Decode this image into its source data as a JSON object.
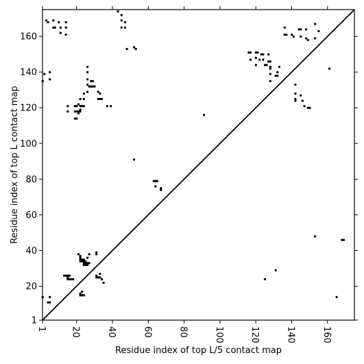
{
  "chart_data": {
    "type": "scatter",
    "xlabel": "Residue index of top L/5 contact map",
    "ylabel": "Residue index of top L contact map",
    "xlim": [
      1,
      175
    ],
    "ylim": [
      1,
      175
    ],
    "xticks": [
      1,
      20,
      40,
      60,
      80,
      100,
      120,
      140,
      160
    ],
    "yticks": [
      1,
      20,
      40,
      60,
      80,
      100,
      120,
      140,
      160
    ],
    "xtick_rotation": -90,
    "grid": false,
    "diagonal_line": true,
    "marker_color": "#000000",
    "upper_points": [
      [
        1,
        135
      ],
      [
        2,
        139
      ],
      [
        5,
        140
      ],
      [
        5,
        136
      ],
      [
        3,
        169
      ],
      [
        4,
        168
      ],
      [
        7,
        169
      ],
      [
        7,
        165
      ],
      [
        8,
        165
      ],
      [
        10,
        168
      ],
      [
        11,
        165
      ],
      [
        11,
        162
      ],
      [
        14,
        168
      ],
      [
        14,
        165
      ],
      [
        14,
        161
      ],
      [
        19,
        121
      ],
      [
        20,
        121
      ],
      [
        21,
        122
      ],
      [
        22,
        121
      ],
      [
        23,
        121
      ],
      [
        24,
        121
      ],
      [
        19,
        118
      ],
      [
        20,
        118
      ],
      [
        21,
        118
      ],
      [
        22,
        118
      ],
      [
        15,
        118
      ],
      [
        15,
        121
      ],
      [
        19,
        114
      ],
      [
        20,
        114
      ],
      [
        21,
        117
      ],
      [
        22,
        119
      ],
      [
        22,
        125
      ],
      [
        24,
        125
      ],
      [
        24,
        128
      ],
      [
        26,
        143
      ],
      [
        26,
        140
      ],
      [
        26,
        136
      ],
      [
        26,
        133
      ],
      [
        26,
        129
      ],
      [
        27,
        132
      ],
      [
        28,
        132
      ],
      [
        29,
        132
      ],
      [
        30,
        132
      ],
      [
        28,
        135
      ],
      [
        29,
        135
      ],
      [
        32,
        129
      ],
      [
        33,
        128
      ],
      [
        32,
        125
      ],
      [
        33,
        125
      ],
      [
        34,
        125
      ],
      [
        37,
        121
      ],
      [
        39,
        121
      ],
      [
        43,
        174
      ],
      [
        45,
        172
      ],
      [
        45,
        169
      ],
      [
        47,
        168
      ],
      [
        45,
        165
      ],
      [
        47,
        165
      ],
      [
        48,
        153
      ],
      [
        52,
        154
      ],
      [
        53,
        153
      ],
      [
        52,
        91
      ],
      [
        63,
        79
      ],
      [
        64,
        79
      ],
      [
        65,
        79
      ],
      [
        64,
        76
      ],
      [
        67,
        75
      ],
      [
        67,
        74
      ],
      [
        91,
        116
      ],
      [
        116,
        151
      ],
      [
        117,
        151
      ],
      [
        117,
        147
      ],
      [
        120,
        151
      ],
      [
        120,
        148
      ],
      [
        120,
        144
      ],
      [
        121,
        151
      ],
      [
        122,
        147
      ],
      [
        123,
        150
      ],
      [
        124,
        150
      ],
      [
        124,
        147
      ],
      [
        125,
        144
      ],
      [
        126,
        144
      ],
      [
        127,
        150
      ],
      [
        127,
        146
      ],
      [
        128,
        146
      ],
      [
        128,
        143
      ],
      [
        128,
        142
      ],
      [
        128,
        139
      ],
      [
        128,
        135
      ],
      [
        131,
        138
      ],
      [
        132,
        138
      ],
      [
        132,
        140
      ],
      [
        133,
        143
      ],
      [
        136,
        165
      ],
      [
        136,
        161
      ],
      [
        137,
        161
      ],
      [
        140,
        161
      ],
      [
        141,
        160
      ],
      [
        144,
        164
      ],
      [
        145,
        164
      ],
      [
        145,
        160
      ],
      [
        148,
        164
      ],
      [
        148,
        159
      ],
      [
        149,
        158
      ],
      [
        142,
        133
      ],
      [
        142,
        128
      ],
      [
        142,
        125
      ],
      [
        142,
        124
      ],
      [
        145,
        127
      ],
      [
        146,
        124
      ],
      [
        147,
        121
      ],
      [
        149,
        120
      ],
      [
        150,
        120
      ],
      [
        153,
        167
      ],
      [
        153,
        159
      ],
      [
        155,
        163
      ],
      [
        161,
        142
      ]
    ],
    "lower_points": [
      [
        1,
        14
      ],
      [
        4,
        11
      ],
      [
        5,
        11
      ],
      [
        5,
        14
      ],
      [
        13,
        26
      ],
      [
        14,
        26
      ],
      [
        15,
        26
      ],
      [
        15,
        25
      ],
      [
        16,
        26
      ],
      [
        15,
        24
      ],
      [
        16,
        24
      ],
      [
        17,
        24
      ],
      [
        18,
        24
      ],
      [
        21,
        38
      ],
      [
        22,
        37
      ],
      [
        22,
        36
      ],
      [
        22,
        35
      ],
      [
        23,
        35
      ],
      [
        24,
        35
      ],
      [
        22,
        34
      ],
      [
        23,
        34
      ],
      [
        24,
        34
      ],
      [
        25,
        34
      ],
      [
        24,
        33
      ],
      [
        25,
        33
      ],
      [
        26,
        33
      ],
      [
        27,
        33
      ],
      [
        24,
        32
      ],
      [
        25,
        32
      ],
      [
        26,
        32
      ],
      [
        26,
        36
      ],
      [
        27,
        38
      ],
      [
        22,
        15
      ],
      [
        22,
        16
      ],
      [
        23,
        15
      ],
      [
        23,
        17
      ],
      [
        24,
        15
      ],
      [
        31,
        38
      ],
      [
        31,
        39
      ],
      [
        31,
        26
      ],
      [
        31,
        25
      ],
      [
        32,
        25
      ],
      [
        33,
        25
      ],
      [
        33,
        27
      ],
      [
        34,
        24
      ],
      [
        35,
        22
      ],
      [
        125,
        24
      ],
      [
        131,
        29
      ],
      [
        153,
        48
      ],
      [
        165,
        14
      ],
      [
        168,
        46
      ],
      [
        169,
        46
      ]
    ]
  }
}
